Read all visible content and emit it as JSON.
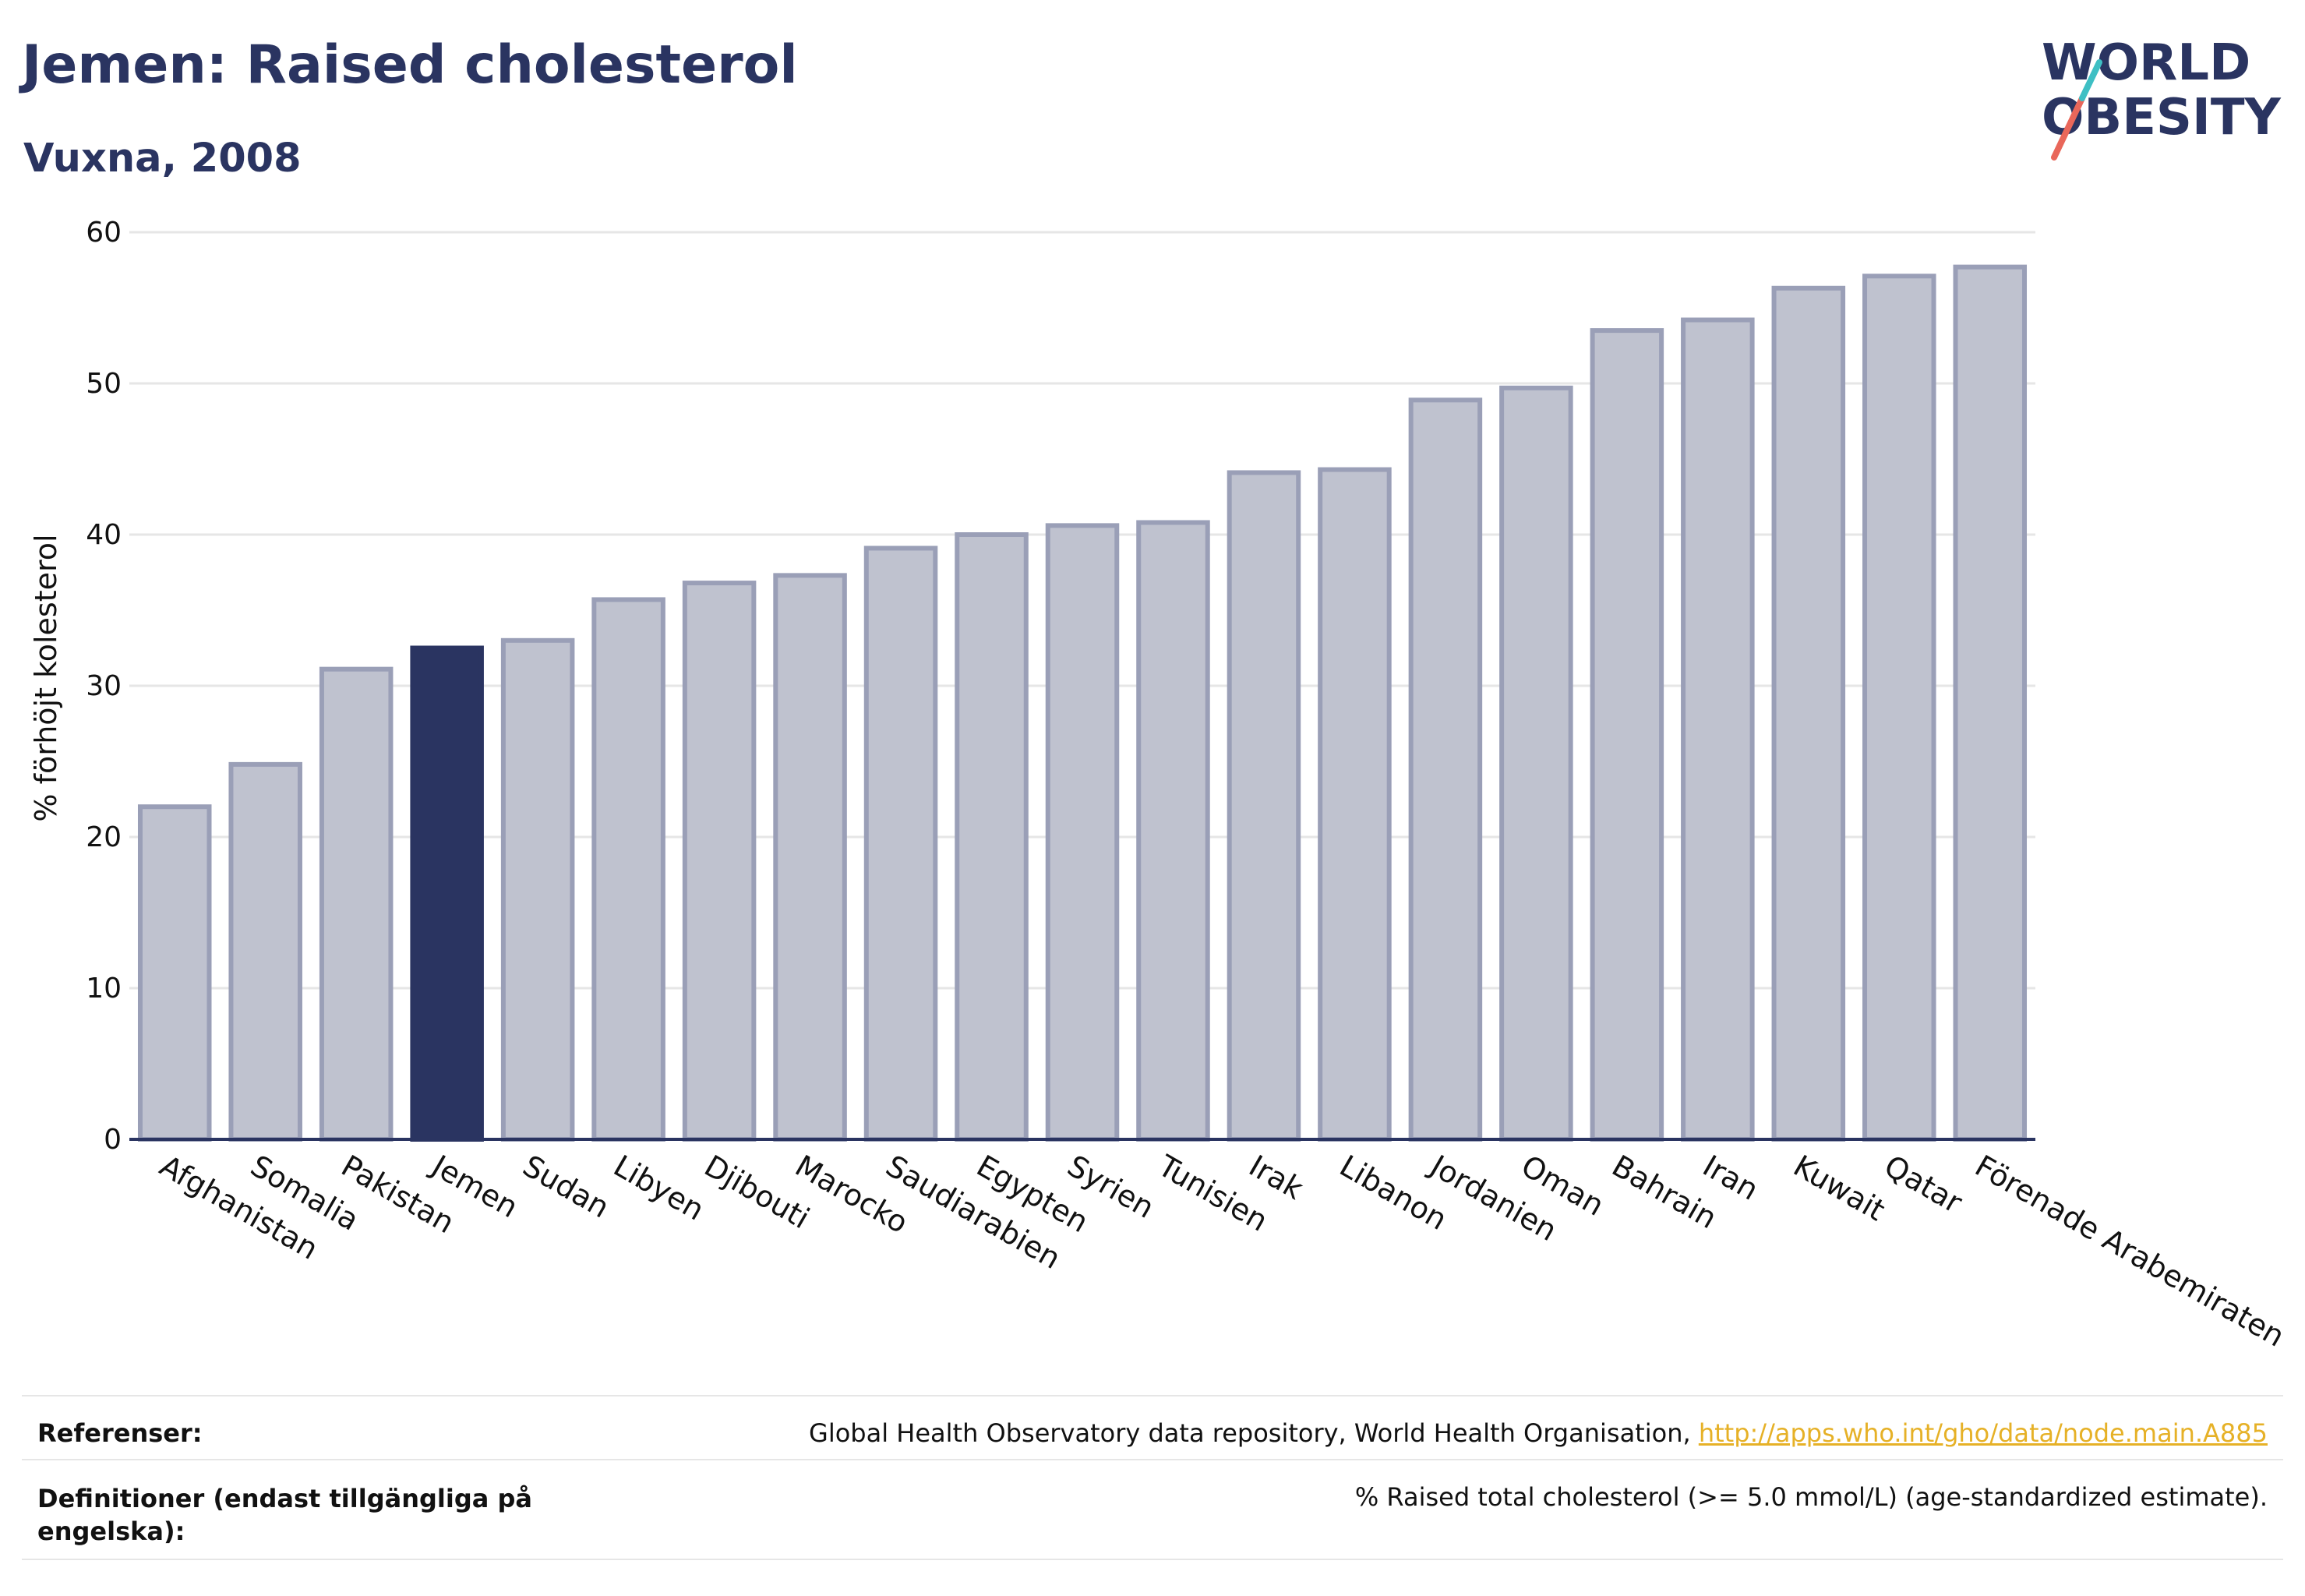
{
  "header": {
    "title": "Jemen: Raised cholesterol",
    "subtitle": "Vuxna, 2008"
  },
  "logo": {
    "line1": "WORLD",
    "line2": "OBESITY",
    "accent_colors": [
      "#e9675a",
      "#3ebfc4"
    ]
  },
  "colors": {
    "bar_default": "#bfc2cf",
    "bar_default_stroke": "#9a9fb7",
    "bar_highlight": "#2a3461",
    "text": "#2a3461",
    "grid": "#e6e6e6",
    "link": "#e6b127"
  },
  "chart_data": {
    "type": "bar",
    "title": "Jemen: Raised cholesterol",
    "subtitle": "Vuxna, 2008",
    "ylabel": "% förhöjt kolesterol",
    "xlabel": "",
    "ylim": [
      0,
      60
    ],
    "yticks": [
      0,
      10,
      20,
      30,
      40,
      50,
      60
    ],
    "grid": true,
    "highlight": "Jemen",
    "categories": [
      "Afghanistan",
      "Somalia",
      "Pakistan",
      "Jemen",
      "Sudan",
      "Libyen",
      "Djibouti",
      "Marocko",
      "Saudiarabien",
      "Egypten",
      "Syrien",
      "Tunisien",
      "Irak",
      "Libanon",
      "Jordanien",
      "Oman",
      "Bahrain",
      "Iran",
      "Kuwait",
      "Qatar",
      "Förenade Arabemiraten"
    ],
    "values": [
      22.0,
      24.8,
      31.1,
      32.5,
      33.0,
      35.7,
      36.8,
      37.3,
      39.1,
      40.0,
      40.6,
      40.8,
      44.1,
      44.3,
      48.9,
      49.7,
      53.5,
      54.2,
      56.3,
      57.1,
      57.7
    ]
  },
  "footer": {
    "references_label": "Referenser:",
    "references_text": "Global Health Observatory data repository, World Health Organisation, ",
    "references_link": "http://apps.who.int/gho/data/node.main.A885",
    "definitions_label_line1": "Definitioner (endast tillgängliga på",
    "definitions_label_line2": "engelska):",
    "definitions_text": "% Raised total cholesterol (>= 5.0 mmol/L) (age-standardized estimate)."
  }
}
